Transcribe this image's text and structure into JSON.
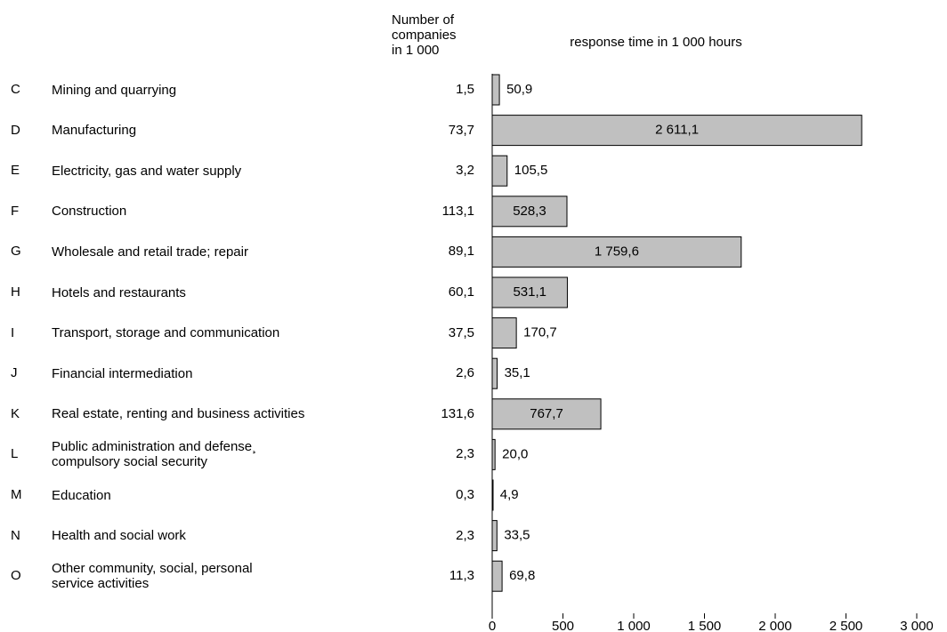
{
  "chart_data": {
    "type": "bar",
    "orientation": "horizontal",
    "title": "response time in 1 000 hours",
    "companies_header": "Number of\ncompanies\nin 1 000",
    "codes": [
      "C",
      "D",
      "E",
      "F",
      "G",
      "H",
      "I",
      "J",
      "K",
      "L",
      "M",
      "N",
      "O"
    ],
    "categories": [
      "Mining and quarrying",
      "Manufacturing",
      "Electricity, gas and water supply",
      "Construction",
      "Wholesale and retail trade; repair",
      "Hotels and restaurants",
      "Transport, storage and communication",
      "Financial intermediation",
      "Real estate, renting and business activities",
      "Public administration and defense¸\ncompulsory social security",
      "Education",
      "Health and social work",
      "Other community, social, personal\nservice activities"
    ],
    "companies": [
      "1,5",
      "73,7",
      "3,2",
      "113,1",
      "89,1",
      "60,1",
      "37,5",
      "2,6",
      "131,6",
      "2,3",
      "0,3",
      "2,3",
      "11,3"
    ],
    "values": [
      50.9,
      2611.1,
      105.5,
      528.3,
      1759.6,
      531.1,
      170.7,
      35.1,
      767.7,
      20.0,
      4.9,
      33.5,
      69.8
    ],
    "value_labels": [
      "50,9",
      "2 611,1",
      "105,5",
      "528,3",
      "1 759,6",
      "531,1",
      "170,7",
      "35,1",
      "767,7",
      "20,0",
      "4,9",
      "33,5",
      "69,8"
    ],
    "color": "#c0c0c0",
    "xlim": [
      0,
      3000
    ],
    "xticks": [
      0,
      500,
      {
        "value": 1000,
        "label": "1 000"
      },
      {
        "value": 1500,
        "label": "1 500"
      },
      {
        "value": 2000,
        "label": "2 000"
      },
      {
        "value": 2500,
        "label": "2 500"
      },
      {
        "value": 3000,
        "label": "3 000"
      }
    ],
    "grid": false
  }
}
